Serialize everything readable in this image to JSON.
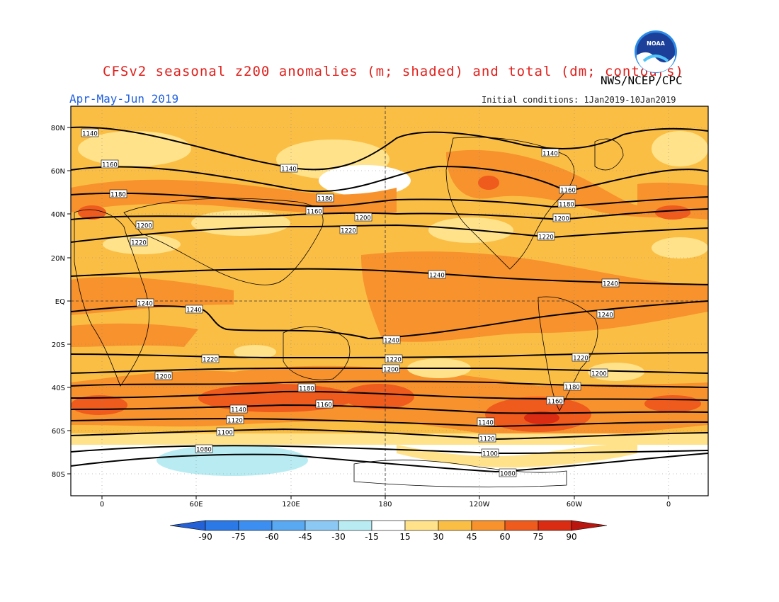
{
  "title": "CFSv2 seasonal z200 anomalies (m; shaded) and total (dm; contours)",
  "organization": "NWS/NCEP/CPC",
  "logo_text": "NOAA",
  "season": "Apr-May-Jun 2019",
  "initial_conditions": "Initial conditions: 1Jan2019-10Jan2019",
  "map": {
    "lat_labels": [
      "80N",
      "60N",
      "40N",
      "20N",
      "EQ",
      "20S",
      "40S",
      "60S",
      "80S"
    ],
    "lon_labels": [
      "0",
      "60E",
      "120E",
      "180",
      "120W",
      "60W",
      "0"
    ]
  },
  "colorbar": {
    "ticks": [
      "-90",
      "-75",
      "-60",
      "-45",
      "-30",
      "-15",
      "15",
      "30",
      "45",
      "60",
      "75",
      "90"
    ],
    "colors": [
      "#2461d6",
      "#2b79e6",
      "#3c8ff0",
      "#58a8f2",
      "#8cc8f4",
      "#b8ecf2",
      "#ffffff",
      "#ffe28a",
      "#fbbe45",
      "#f7922c",
      "#ef5a1d",
      "#d92c12",
      "#b8160e"
    ]
  },
  "contour_labels": [
    {
      "text": "1140"
    },
    {
      "text": "1160"
    },
    {
      "text": "1180"
    },
    {
      "text": "1200"
    },
    {
      "text": "1220"
    },
    {
      "text": "1140"
    },
    {
      "text": "1180"
    },
    {
      "text": "1160"
    },
    {
      "text": "1200"
    },
    {
      "text": "1220"
    },
    {
      "text": "1140"
    },
    {
      "text": "1160"
    },
    {
      "text": "1180"
    },
    {
      "text": "1200"
    },
    {
      "text": "1220"
    },
    {
      "text": "1240"
    },
    {
      "text": "1240"
    },
    {
      "text": "1240"
    },
    {
      "text": "1240"
    },
    {
      "text": "1240"
    },
    {
      "text": "1240"
    },
    {
      "text": "1220"
    },
    {
      "text": "1220"
    },
    {
      "text": "1200"
    },
    {
      "text": "1200"
    },
    {
      "text": "1180"
    },
    {
      "text": "1160"
    },
    {
      "text": "1140"
    },
    {
      "text": "1120"
    },
    {
      "text": "1100"
    },
    {
      "text": "1080"
    },
    {
      "text": "1220"
    },
    {
      "text": "1200"
    },
    {
      "text": "1180"
    },
    {
      "text": "1160"
    },
    {
      "text": "1140"
    },
    {
      "text": "1120"
    },
    {
      "text": "1100"
    },
    {
      "text": "1080"
    }
  ]
}
